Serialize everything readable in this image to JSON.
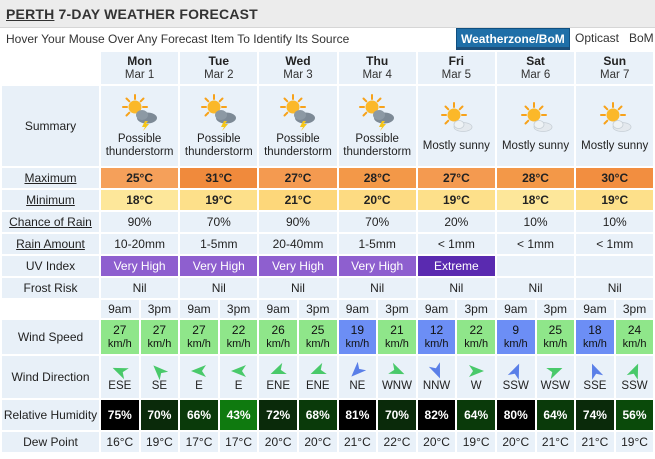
{
  "header": {
    "city": "PERTH",
    "title_rest": " 7-DAY WEATHER FORECAST",
    "hint": "Hover Your Mouse Over Any Forecast Item To Identify Its Source",
    "tabs": [
      "Weatherzone/BoM",
      "Opticast",
      "BoM"
    ],
    "active_tab": "Weatherzone/BoM"
  },
  "row_labels": {
    "summary": "Summary",
    "maximum": "Maximum",
    "minimum": "Minimum",
    "chance_of_rain": "Chance of Rain",
    "rain_amount": "Rain Amount",
    "uv_index": "UV Index",
    "frost_risk": "Frost Risk",
    "wind_speed": "Wind Speed",
    "wind_direction": "Wind Direction",
    "relative_humidity": "Relative Humidity",
    "dew_point": "Dew Point"
  },
  "times": [
    "9am",
    "3pm"
  ],
  "speed_unit": "km/h",
  "days": [
    {
      "name": "Mon",
      "date": "Mar 1",
      "icon": "sun-storm-icon",
      "summary": "Possible thunderstorm",
      "max": "25°C",
      "max_color": "#f5a05a",
      "min": "18°C",
      "min_color": "#fde79a",
      "rain_chance": "90%",
      "rain_amount": "10-20mm",
      "uv": "Very High",
      "uv_color": "#8e5fcf",
      "frost": "Nil",
      "wind_speed": [
        "27",
        "27"
      ],
      "wind_speed_color": [
        "#8fe68a",
        "#8fe68a"
      ],
      "wind_dir": [
        "ESE",
        "SE"
      ],
      "wind_dir_deg": [
        293,
        315
      ],
      "humidity": [
        "75%",
        "70%"
      ],
      "humidity_color": [
        "#000000",
        "#0a2a0a"
      ],
      "dew": [
        "16°C",
        "19°C"
      ]
    },
    {
      "name": "Tue",
      "date": "Mar 2",
      "icon": "sun-storm-icon",
      "summary": "Possible thunderstorm",
      "max": "31°C",
      "max_color": "#f08a3c",
      "min": "19°C",
      "min_color": "#fde08a",
      "rain_chance": "70%",
      "rain_amount": "1-5mm",
      "uv": "Very High",
      "uv_color": "#8e5fcf",
      "frost": "Nil",
      "wind_speed": [
        "27",
        "22"
      ],
      "wind_speed_color": [
        "#8fe68a",
        "#8fe68a"
      ],
      "wind_dir": [
        "E",
        "E"
      ],
      "wind_dir_deg": [
        270,
        270
      ],
      "humidity": [
        "66%",
        "43%"
      ],
      "humidity_color": [
        "#0a3a0a",
        "#0f7a0f"
      ],
      "dew": [
        "17°C",
        "17°C"
      ]
    },
    {
      "name": "Wed",
      "date": "Mar 3",
      "icon": "sun-storm-icon",
      "summary": "Possible thunderstorm",
      "max": "27°C",
      "max_color": "#f49a50",
      "min": "21°C",
      "min_color": "#fdd77a",
      "rain_chance": "90%",
      "rain_amount": "20-40mm",
      "uv": "Very High",
      "uv_color": "#8e5fcf",
      "frost": "Nil",
      "wind_speed": [
        "26",
        "25"
      ],
      "wind_speed_color": [
        "#8fe68a",
        "#8fe68a"
      ],
      "wind_dir": [
        "ENE",
        "ENE"
      ],
      "wind_dir_deg": [
        248,
        248
      ],
      "humidity": [
        "72%",
        "68%"
      ],
      "humidity_color": [
        "#0a2a0a",
        "#0a3a0a"
      ],
      "dew": [
        "20°C",
        "20°C"
      ]
    },
    {
      "name": "Thu",
      "date": "Mar 4",
      "icon": "sun-storm-icon",
      "summary": "Possible thunderstorm",
      "max": "28°C",
      "max_color": "#f39848",
      "min": "20°C",
      "min_color": "#fddb82",
      "rain_chance": "70%",
      "rain_amount": "1-5mm",
      "uv": "Very High",
      "uv_color": "#8e5fcf",
      "frost": "Nil",
      "wind_speed": [
        "19",
        "21"
      ],
      "wind_speed_color": [
        "#6c8ef5",
        "#8fe68a"
      ],
      "wind_dir": [
        "NE",
        "WNW"
      ],
      "wind_dir_deg": [
        225,
        113
      ],
      "humidity": [
        "81%",
        "70%"
      ],
      "humidity_color": [
        "#000000",
        "#0a2a0a"
      ],
      "dew": [
        "21°C",
        "22°C"
      ]
    },
    {
      "name": "Fri",
      "date": "Mar 5",
      "icon": "sun-cloud-icon",
      "summary": "Mostly sunny",
      "max": "27°C",
      "max_color": "#f49a50",
      "min": "19°C",
      "min_color": "#fde08a",
      "rain_chance": "20%",
      "rain_amount": "< 1mm",
      "uv": "Extreme",
      "uv_color": "#5a2ab0",
      "frost": "Nil",
      "wind_speed": [
        "12",
        "22"
      ],
      "wind_speed_color": [
        "#6c8ef5",
        "#8fe68a"
      ],
      "wind_dir": [
        "NNW",
        "W"
      ],
      "wind_dir_deg": [
        158,
        90
      ],
      "humidity": [
        "82%",
        "64%"
      ],
      "humidity_color": [
        "#000000",
        "#0a3a0a"
      ],
      "dew": [
        "20°C",
        "19°C"
      ]
    },
    {
      "name": "Sat",
      "date": "Mar 6",
      "icon": "sun-cloud-icon",
      "summary": "Mostly sunny",
      "max": "28°C",
      "max_color": "#f39848",
      "min": "18°C",
      "min_color": "#fde79a",
      "rain_chance": "10%",
      "rain_amount": "< 1mm",
      "uv": "",
      "uv_color": "",
      "frost": "Nil",
      "wind_speed": [
        "9",
        "25"
      ],
      "wind_speed_color": [
        "#6c8ef5",
        "#8fe68a"
      ],
      "wind_dir": [
        "SSW",
        "WSW"
      ],
      "wind_dir_deg": [
        23,
        68
      ],
      "humidity": [
        "80%",
        "64%"
      ],
      "humidity_color": [
        "#000000",
        "#0a3a0a"
      ],
      "dew": [
        "20°C",
        "21°C"
      ]
    },
    {
      "name": "Sun",
      "date": "Mar 7",
      "icon": "sun-cloud-icon",
      "summary": "Mostly sunny",
      "max": "30°C",
      "max_color": "#f28e40",
      "min": "19°C",
      "min_color": "#fde08a",
      "rain_chance": "10%",
      "rain_amount": "< 1mm",
      "uv": "",
      "uv_color": "",
      "frost": "Nil",
      "wind_speed": [
        "18",
        "24"
      ],
      "wind_speed_color": [
        "#6c8ef5",
        "#8fe68a"
      ],
      "wind_dir": [
        "SSE",
        "SSW"
      ],
      "wind_dir_deg": [
        338,
        23
      ],
      "humidity": [
        "74%",
        "56%"
      ],
      "humidity_color": [
        "#0a2a0a",
        "#0a4a0a"
      ],
      "dew": [
        "21°C",
        "19°C"
      ]
    }
  ],
  "colors": {
    "label_bg": "#e8f0f8",
    "cell_bg": "#e9f1f9",
    "tab_active_bg": "#1f6fa8"
  }
}
